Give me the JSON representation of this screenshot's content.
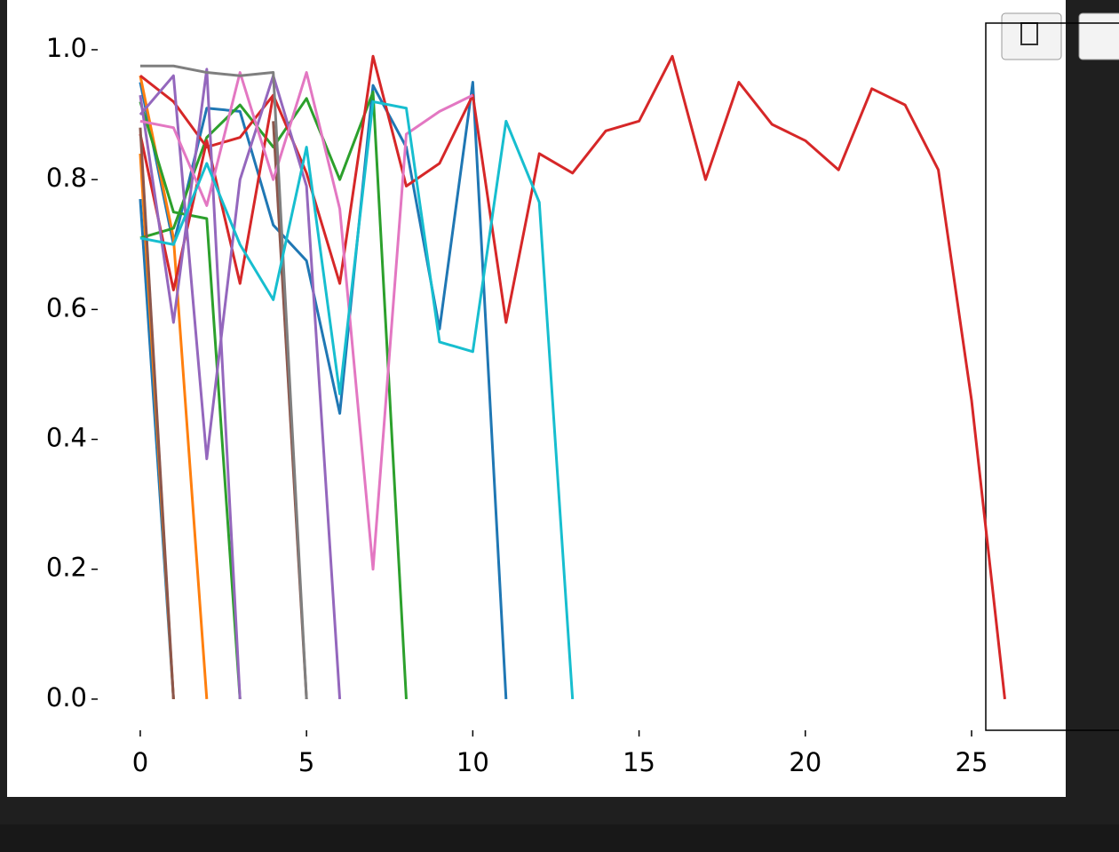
{
  "chart_data": {
    "type": "line",
    "x": [
      0,
      1,
      2,
      3,
      4,
      5,
      6,
      7,
      8,
      9,
      10,
      11,
      12,
      13,
      14,
      15,
      16,
      17,
      18,
      19,
      20,
      21,
      22,
      23,
      24,
      25,
      26
    ],
    "xlim": [
      -1.28,
      27.35
    ],
    "xticks": [
      0,
      5,
      10,
      15,
      20,
      25
    ],
    "ylim": [
      -0.048,
      1.041
    ],
    "yticks": [
      {
        "value": 0,
        "label": "0.0"
      },
      0.2,
      0.4,
      0.6,
      0.8,
      {
        "value": 1,
        "label": "1.0"
      }
    ],
    "series": [
      {
        "color": "#1f77b4",
        "values": [
          0.95,
          0.7,
          0.91,
          0.905,
          0.73,
          0.675,
          0.44,
          0.945,
          0.85,
          0.57,
          0.95,
          0.0,
          null,
          null,
          null,
          null,
          null,
          null,
          null,
          null,
          null,
          null,
          null,
          null,
          null,
          null,
          null
        ]
      },
      {
        "color": "#1f77b4",
        "values": [
          0.77,
          0.0,
          null,
          null,
          null,
          null,
          null,
          null,
          null,
          null,
          null,
          null,
          null,
          null,
          null,
          null,
          null,
          null,
          null,
          null,
          null,
          null,
          null,
          null,
          null,
          null,
          null
        ]
      },
      {
        "color": "#ff7f0e",
        "values": [
          0.84,
          0.0,
          null,
          null,
          null,
          null,
          null,
          null,
          null,
          null,
          null,
          null,
          null,
          null,
          null,
          null,
          null,
          null,
          null,
          null,
          null,
          null,
          null,
          null,
          null,
          null,
          null
        ]
      },
      {
        "color": "#ff7f0e",
        "values": [
          0.96,
          0.71,
          0.0,
          null,
          null,
          null,
          null,
          null,
          null,
          null,
          null,
          null,
          null,
          null,
          null,
          null,
          null,
          null,
          null,
          null,
          null,
          null,
          null,
          null,
          null,
          null,
          null
        ]
      },
      {
        "color": "#2ca02c",
        "values": [
          0.71,
          0.725,
          0.865,
          0.915,
          0.85,
          0.925,
          0.8,
          0.935,
          0.0,
          null,
          null,
          null,
          null,
          null,
          null,
          null,
          null,
          null,
          null,
          null,
          null,
          null,
          null,
          null,
          null,
          null,
          null
        ]
      },
      {
        "color": "#2ca02c",
        "values": [
          0.92,
          0.75,
          0.74,
          0.0,
          null,
          null,
          null,
          null,
          null,
          null,
          null,
          null,
          null,
          null,
          null,
          null,
          null,
          null,
          null,
          null,
          null,
          null,
          null,
          null,
          null,
          null,
          null
        ]
      },
      {
        "color": "#d62728",
        "values": [
          0.87,
          0.63,
          0.86,
          0.64,
          0.93,
          0.81,
          0.64,
          0.99,
          0.79,
          0.825,
          0.93,
          0.58,
          0.84,
          0.81,
          0.875,
          0.89,
          0.99,
          0.8,
          0.95,
          0.885,
          0.86,
          0.815,
          0.94,
          0.915,
          0.815,
          0.46,
          0.0
        ]
      },
      {
        "color": "#d62728",
        "values": [
          0.96,
          0.92,
          0.85,
          0.865,
          0.93,
          null,
          null,
          null,
          null,
          null,
          null,
          null,
          null,
          null,
          null,
          null,
          null,
          null,
          null,
          null,
          null,
          null,
          null,
          null,
          null,
          null,
          null
        ]
      },
      {
        "color": "#9467bd",
        "values": [
          0.9,
          0.96,
          0.37,
          0.8,
          0.96,
          0.79,
          0.0,
          null,
          null,
          null,
          null,
          null,
          null,
          null,
          null,
          null,
          null,
          null,
          null,
          null,
          null,
          null,
          null,
          null,
          null,
          null,
          null
        ]
      },
      {
        "color": "#9467bd",
        "values": [
          0.93,
          0.58,
          0.97,
          0.0,
          null,
          null,
          null,
          null,
          null,
          null,
          null,
          null,
          null,
          null,
          null,
          null,
          null,
          null,
          null,
          null,
          null,
          null,
          null,
          null,
          null,
          null,
          null
        ]
      },
      {
        "color": "#8c564b",
        "values": [
          0.88,
          0.0,
          null,
          null,
          null,
          null,
          null,
          null,
          null,
          null,
          null,
          null,
          null,
          null,
          null,
          null,
          null,
          null,
          null,
          null,
          null,
          null,
          null,
          null,
          null,
          null,
          null
        ]
      },
      {
        "color": "#8c564b",
        "values": [
          null,
          null,
          null,
          null,
          0.89,
          0.0,
          null,
          null,
          null,
          null,
          null,
          null,
          null,
          null,
          null,
          null,
          null,
          null,
          null,
          null,
          null,
          null,
          null,
          null,
          null,
          null,
          null
        ]
      },
      {
        "color": "#e377c2",
        "values": [
          0.89,
          0.88,
          0.76,
          0.965,
          0.8,
          0.965,
          0.755,
          0.2,
          0.87,
          0.905,
          0.93,
          null,
          null,
          null,
          null,
          null,
          null,
          null,
          null,
          null,
          null,
          null,
          null,
          null,
          null,
          null,
          null
        ]
      },
      {
        "color": "#7f7f7f",
        "values": [
          0.975,
          0.975,
          0.965,
          0.96,
          0.965,
          0.0,
          null,
          null,
          null,
          null,
          null,
          null,
          null,
          null,
          null,
          null,
          null,
          null,
          null,
          null,
          null,
          null,
          null,
          null,
          null,
          null,
          null
        ]
      },
      {
        "color": "#17becf",
        "values": [
          0.71,
          0.7,
          0.825,
          0.7,
          0.615,
          0.85,
          0.47,
          0.92,
          0.91,
          0.55,
          0.535,
          0.89,
          0.765,
          0.0,
          null,
          null,
          null,
          null,
          null,
          null,
          null,
          null,
          null,
          null,
          null,
          null,
          null
        ]
      }
    ]
  }
}
